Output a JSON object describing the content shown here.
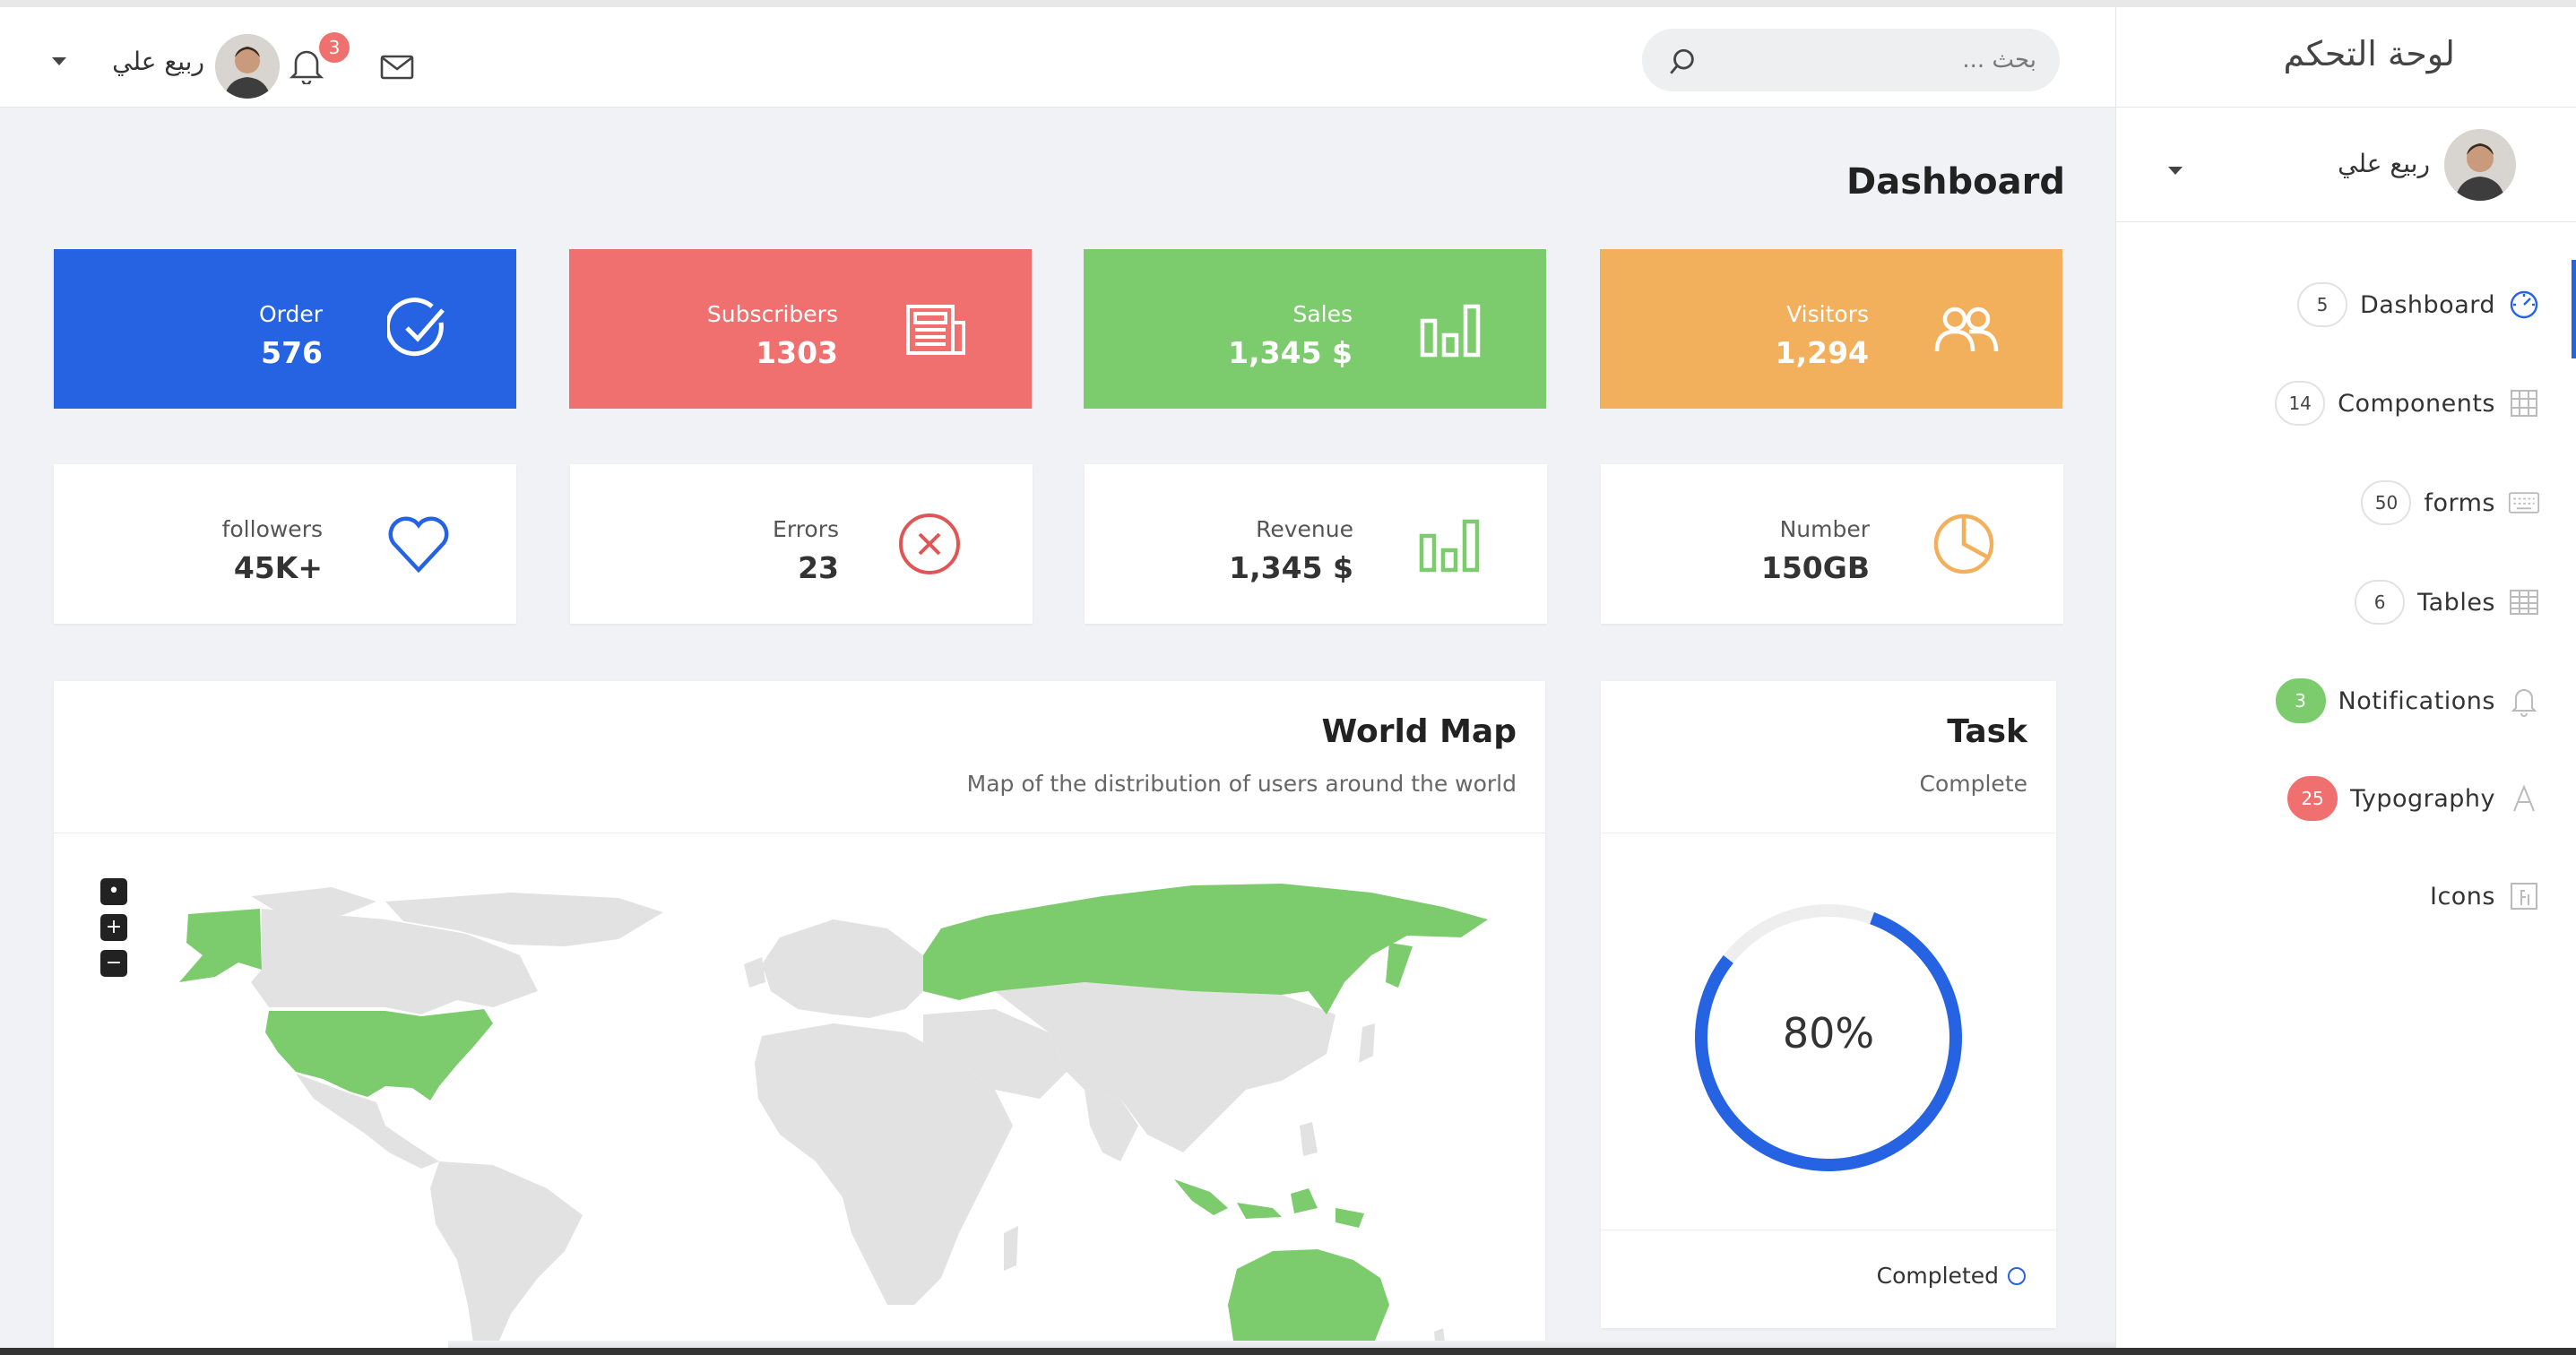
{
  "brand": {
    "title": "لوحة التحكم"
  },
  "header": {
    "search_placeholder": "بحث ...",
    "notifications_count": "3",
    "user_name": "ربيع علي"
  },
  "sidebar": {
    "user_name": "ربيع علي",
    "items": [
      {
        "label": "Dashboard",
        "badge": "5",
        "icon": "dashboard-gauge-icon"
      },
      {
        "label": "Components",
        "badge": "14",
        "icon": "grid-icon"
      },
      {
        "label": "forms",
        "badge": "50",
        "icon": "keyboard-icon"
      },
      {
        "label": "Tables",
        "badge": "6",
        "icon": "table-icon"
      },
      {
        "label": "Notifications",
        "badge": "3",
        "icon": "bell-icon"
      },
      {
        "label": "Typography",
        "badge": "25",
        "icon": "letter-a-icon"
      },
      {
        "label": "Icons",
        "badge": "",
        "icon": "icons-box-icon"
      }
    ]
  },
  "page": {
    "title": "Dashboard"
  },
  "stats_top": [
    {
      "label": "Order",
      "value": "576",
      "color": "#2563e3",
      "icon": "check-circle-icon"
    },
    {
      "label": "Subscribers",
      "value": "1303",
      "color": "#f07070",
      "icon": "newspaper-icon"
    },
    {
      "label": "Sales",
      "value": "1,345 $",
      "color": "#7ccc6e",
      "icon": "bar-chart-icon"
    },
    {
      "label": "Visitors",
      "value": "1,294",
      "color": "#f2b05c",
      "icon": "users-icon"
    }
  ],
  "stats_bottom": [
    {
      "label": "followers",
      "value": "45K+",
      "color": "#2563e3",
      "icon": "heart-icon"
    },
    {
      "label": "Errors",
      "value": "23",
      "color": "#e05555",
      "icon": "x-circle-icon"
    },
    {
      "label": "Revenue",
      "value": "1,345 $",
      "color": "#7ccc6e",
      "icon": "bar-chart-icon"
    },
    {
      "label": "Number",
      "value": "150GB",
      "color": "#f2b05c",
      "icon": "pie-chart-icon"
    }
  ],
  "world_map": {
    "title": "World Map",
    "subtitle": "Map of the distribution of users around the world",
    "highlight_color": "#7ccc6e",
    "base_color": "#e2e2e2"
  },
  "task": {
    "title": "Task",
    "subtitle": "Complete",
    "progress": 80,
    "progress_label": "80%",
    "footer_label": "Completed",
    "ring_color": "#2563e3",
    "track_color": "#eeeeee"
  }
}
